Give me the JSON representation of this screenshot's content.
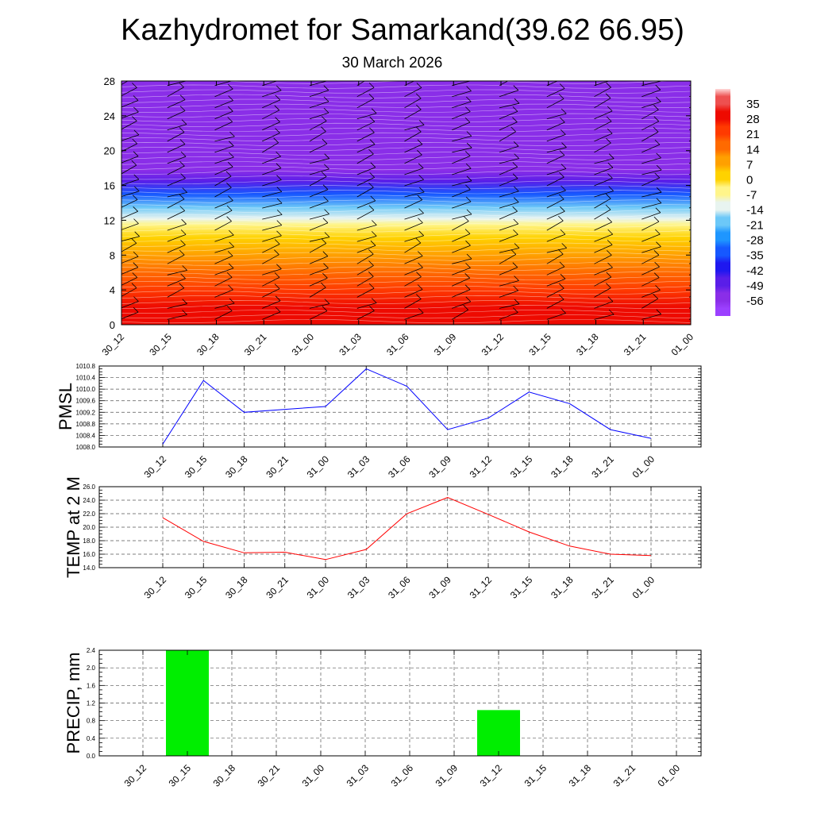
{
  "header": {
    "title": "Kazhydromet for Samarkand(39.62 66.95)",
    "subtitle": "30 March 2026"
  },
  "colors": {
    "pmsl_line": "#0000ff",
    "temp_line": "#ff0000",
    "precip_bar": "#00ee00",
    "wind_barb": "#000000"
  },
  "chart_data": [
    {
      "type": "heatmap",
      "title": "",
      "xlabel": "",
      "ylabel": "",
      "x": [
        "30_12",
        "30_15",
        "30_18",
        "30_21",
        "31_00",
        "31_03",
        "31_06",
        "31_09",
        "31_12",
        "31_15",
        "31_18",
        "31_21",
        "01_00"
      ],
      "y_ticks": [
        "0",
        "4",
        "8",
        "12",
        "16",
        "20",
        "24",
        "28"
      ],
      "ylim": [
        0,
        28
      ],
      "colorbar": {
        "labels": [
          "35",
          "28",
          "21",
          "14",
          "7",
          "0",
          "-7",
          "-14",
          "-21",
          "-28",
          "-35",
          "-42",
          "-49",
          "-56"
        ],
        "range": [
          -63,
          42
        ]
      },
      "temperature_profile": [
        {
          "level": 0,
          "value": 30
        },
        {
          "level": 2,
          "value": 28
        },
        {
          "level": 4,
          "value": 23
        },
        {
          "level": 6,
          "value": 17
        },
        {
          "level": 8,
          "value": 10
        },
        {
          "level": 10,
          "value": 3
        },
        {
          "level": 11.5,
          "value": -4
        },
        {
          "level": 12.2,
          "value": -14
        },
        {
          "level": 13.5,
          "value": -24
        },
        {
          "level": 15,
          "value": -35
        },
        {
          "level": 16.5,
          "value": -46
        },
        {
          "level": 17.7,
          "value": -57
        },
        {
          "level": 19,
          "value": -58
        },
        {
          "level": 22,
          "value": -57
        },
        {
          "level": 26,
          "value": -56
        },
        {
          "level": 28,
          "value": -55
        }
      ],
      "wind_barbs": "present"
    },
    {
      "type": "line",
      "title": "",
      "xlabel": "",
      "ylabel": "PMSL",
      "x": [
        "30_12",
        "30_15",
        "30_18",
        "30_21",
        "31_00",
        "31_03",
        "31_06",
        "31_09",
        "31_12",
        "31_15",
        "31_18",
        "31_21",
        "01_00"
      ],
      "y_ticks": [
        "1008.0",
        "1008.4",
        "1008.8",
        "1009.2",
        "1009.6",
        "1010.0",
        "1010.4",
        "1010.8"
      ],
      "ylim": [
        1008.0,
        1010.8
      ],
      "series": [
        {
          "values": [
            1008.1,
            1010.3,
            1009.2,
            1009.3,
            1009.4,
            1010.7,
            1010.1,
            1008.6,
            1009.0,
            1009.9,
            1009.5,
            1008.6,
            1008.3
          ]
        }
      ],
      "grid": true
    },
    {
      "type": "line",
      "title": "",
      "xlabel": "",
      "ylabel": "TEMP at 2 M",
      "x": [
        "30_12",
        "30_15",
        "30_18",
        "30_21",
        "31_00",
        "31_03",
        "31_06",
        "31_09",
        "31_12",
        "31_15",
        "31_18",
        "31_21",
        "01_00"
      ],
      "y_ticks": [
        "14.0",
        "16.0",
        "18.0",
        "20.0",
        "22.0",
        "24.0",
        "26.0"
      ],
      "ylim": [
        14.0,
        26.0
      ],
      "series": [
        {
          "values": [
            21.4,
            17.9,
            16.2,
            16.3,
            15.2,
            16.7,
            22.0,
            24.4,
            21.9,
            19.3,
            17.2,
            16.0,
            15.8
          ]
        }
      ],
      "grid": true
    },
    {
      "type": "bar",
      "title": "",
      "xlabel": "",
      "ylabel": "PRECIP, mm",
      "categories": [
        "30_12",
        "30_15",
        "30_18",
        "30_21",
        "31_00",
        "31_03",
        "31_06",
        "31_09",
        "31_12",
        "31_15",
        "31_18",
        "31_21",
        "01_00"
      ],
      "y_ticks": [
        "0.0",
        "0.4",
        "0.8",
        "1.2",
        "1.6",
        "2.0",
        "2.4"
      ],
      "ylim": [
        0,
        2.4
      ],
      "values": [
        0,
        2.4,
        0,
        0,
        0,
        0,
        0,
        0,
        1.04,
        0,
        0,
        0,
        0
      ],
      "grid": true
    }
  ]
}
